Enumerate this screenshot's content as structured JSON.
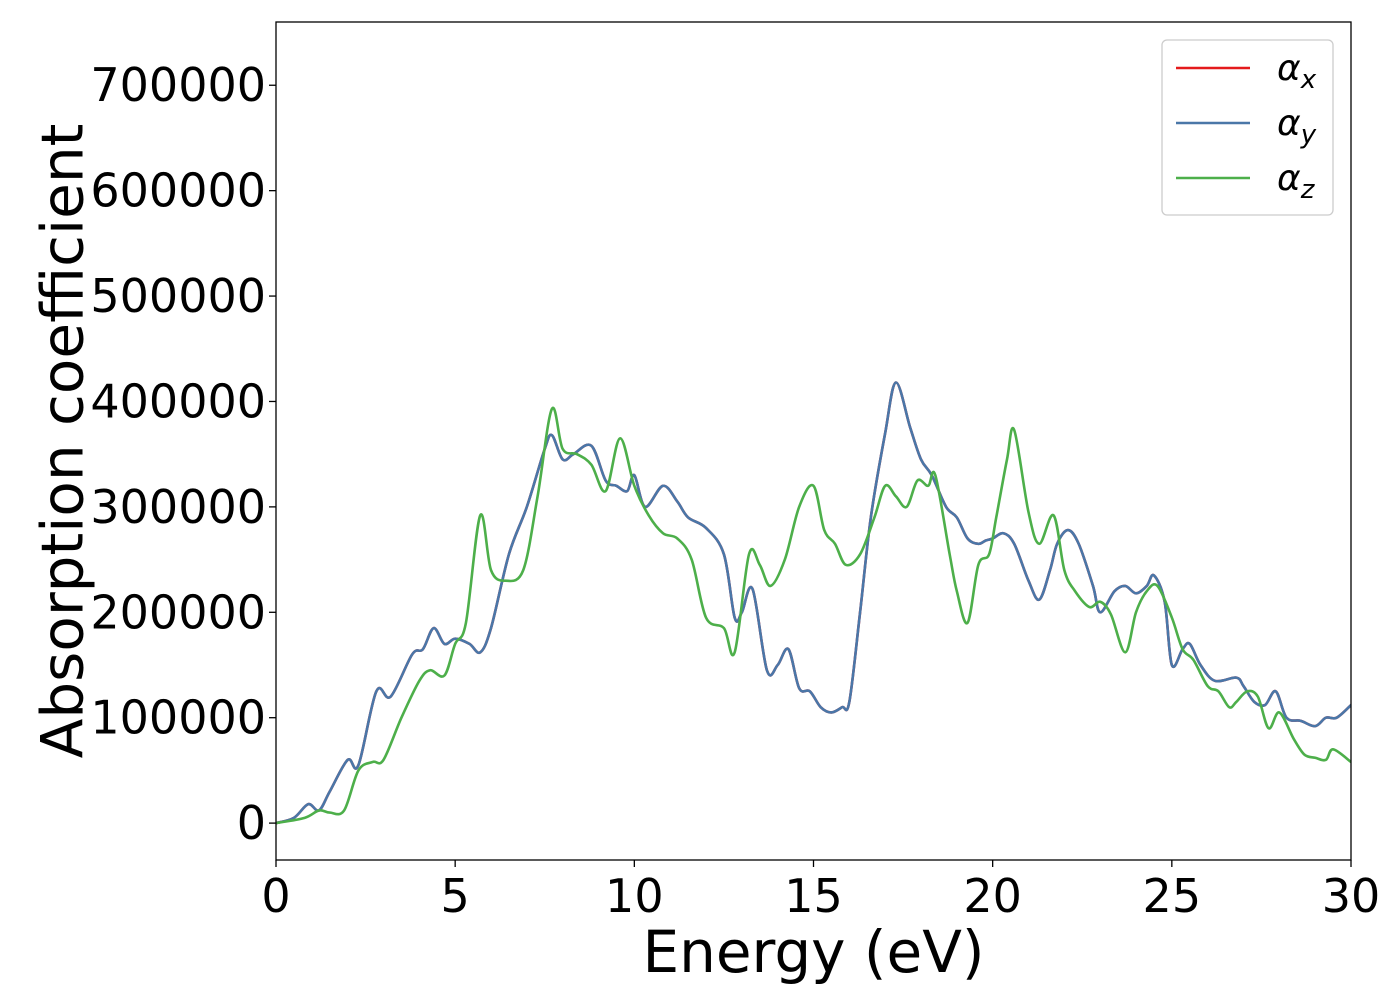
{
  "chart_data": {
    "type": "line",
    "title": "",
    "xlabel": "Energy (eV)",
    "ylabel": "Absorption coefficient",
    "xlim": [
      0,
      30
    ],
    "ylim": [
      -35000,
      760000
    ],
    "xticks": [
      0,
      5,
      10,
      15,
      20,
      25,
      30
    ],
    "yticks": [
      0,
      100000,
      200000,
      300000,
      400000,
      500000,
      600000,
      700000
    ],
    "grid": false,
    "legend_position": "top-right",
    "series": [
      {
        "name": "αx",
        "symbol": "α",
        "subscript": "x",
        "color": "#e41a1c",
        "x": [
          0,
          0.5,
          0.9,
          1.2,
          1.5,
          2.0,
          2.3,
          2.8,
          3.2,
          3.8,
          4.1,
          4.4,
          4.7,
          5.0,
          5.4,
          5.7,
          6.0,
          6.5,
          7.0,
          7.5,
          7.7,
          8.0,
          8.3,
          8.8,
          9.2,
          9.5,
          9.8,
          10.0,
          10.3,
          10.8,
          11.2,
          11.5,
          12.0,
          12.5,
          12.8,
          13.0,
          13.3,
          13.7,
          14.0,
          14.3,
          14.6,
          14.9,
          15.2,
          15.5,
          15.8,
          16.0,
          16.3,
          16.6,
          17.0,
          17.3,
          17.7,
          18.0,
          18.3,
          18.7,
          19.0,
          19.3,
          19.6,
          19.8,
          20.0,
          20.3,
          20.6,
          21.0,
          21.3,
          21.6,
          21.8,
          22.1,
          22.4,
          22.8,
          23.0,
          23.4,
          23.7,
          24.0,
          24.3,
          24.5,
          24.8,
          25.0,
          25.3,
          25.5,
          25.8,
          26.2,
          26.8,
          27.0,
          27.3,
          27.6,
          27.9,
          28.2,
          28.6,
          29.0,
          29.3,
          29.6,
          30.0
        ],
        "values": [
          0,
          5000,
          18000,
          12000,
          30000,
          60000,
          55000,
          125000,
          120000,
          160000,
          165000,
          185000,
          170000,
          175000,
          170000,
          162000,
          185000,
          255000,
          300000,
          355000,
          368000,
          345000,
          350000,
          358000,
          325000,
          320000,
          315000,
          330000,
          300000,
          320000,
          305000,
          290000,
          280000,
          255000,
          195000,
          200000,
          222000,
          145000,
          150000,
          165000,
          128000,
          125000,
          110000,
          105000,
          110000,
          115000,
          200000,
          290000,
          370000,
          418000,
          375000,
          345000,
          330000,
          300000,
          290000,
          270000,
          265000,
          268000,
          270000,
          275000,
          265000,
          230000,
          212000,
          240000,
          265000,
          278000,
          265000,
          225000,
          200000,
          220000,
          225000,
          218000,
          225000,
          235000,
          210000,
          150000,
          165000,
          170000,
          150000,
          135000,
          138000,
          130000,
          115000,
          112000,
          125000,
          100000,
          97000,
          92000,
          100000,
          100000,
          112000
        ]
      },
      {
        "name": "αy",
        "symbol": "α",
        "subscript": "y",
        "color": "#4a77a8",
        "x": [
          0,
          0.5,
          0.9,
          1.2,
          1.5,
          2.0,
          2.3,
          2.8,
          3.2,
          3.8,
          4.1,
          4.4,
          4.7,
          5.0,
          5.4,
          5.7,
          6.0,
          6.5,
          7.0,
          7.5,
          7.7,
          8.0,
          8.3,
          8.8,
          9.2,
          9.5,
          9.8,
          10.0,
          10.3,
          10.8,
          11.2,
          11.5,
          12.0,
          12.5,
          12.8,
          13.0,
          13.3,
          13.7,
          14.0,
          14.3,
          14.6,
          14.9,
          15.2,
          15.5,
          15.8,
          16.0,
          16.3,
          16.6,
          17.0,
          17.3,
          17.7,
          18.0,
          18.3,
          18.7,
          19.0,
          19.3,
          19.6,
          19.8,
          20.0,
          20.3,
          20.6,
          21.0,
          21.3,
          21.6,
          21.8,
          22.1,
          22.4,
          22.8,
          23.0,
          23.4,
          23.7,
          24.0,
          24.3,
          24.5,
          24.8,
          25.0,
          25.3,
          25.5,
          25.8,
          26.2,
          26.8,
          27.0,
          27.3,
          27.6,
          27.9,
          28.2,
          28.6,
          29.0,
          29.3,
          29.6,
          30.0
        ],
        "values": [
          0,
          5000,
          18000,
          12000,
          30000,
          60000,
          55000,
          125000,
          120000,
          160000,
          165000,
          185000,
          170000,
          175000,
          170000,
          162000,
          185000,
          255000,
          300000,
          355000,
          368000,
          345000,
          350000,
          358000,
          325000,
          320000,
          315000,
          330000,
          300000,
          320000,
          305000,
          290000,
          280000,
          255000,
          195000,
          200000,
          222000,
          145000,
          150000,
          165000,
          128000,
          125000,
          110000,
          105000,
          110000,
          115000,
          200000,
          290000,
          370000,
          418000,
          375000,
          345000,
          330000,
          300000,
          290000,
          270000,
          265000,
          268000,
          270000,
          275000,
          265000,
          230000,
          212000,
          240000,
          265000,
          278000,
          265000,
          225000,
          200000,
          220000,
          225000,
          218000,
          225000,
          235000,
          210000,
          150000,
          165000,
          170000,
          150000,
          135000,
          138000,
          130000,
          115000,
          112000,
          125000,
          100000,
          97000,
          92000,
          100000,
          100000,
          112000
        ]
      },
      {
        "name": "αz",
        "symbol": "α",
        "subscript": "z",
        "color": "#4daf4a",
        "x": [
          0,
          0.8,
          1.2,
          1.5,
          1.9,
          2.3,
          2.7,
          3.0,
          3.5,
          4.0,
          4.3,
          4.7,
          5.0,
          5.3,
          5.7,
          6.0,
          6.4,
          6.9,
          7.3,
          7.7,
          8.0,
          8.4,
          8.8,
          9.2,
          9.6,
          10.0,
          10.4,
          10.8,
          11.2,
          11.6,
          12.0,
          12.5,
          12.8,
          13.2,
          13.5,
          13.8,
          14.2,
          14.6,
          15.0,
          15.3,
          15.6,
          15.9,
          16.3,
          16.7,
          17.0,
          17.3,
          17.6,
          17.9,
          18.2,
          18.4,
          18.8,
          19.0,
          19.3,
          19.6,
          19.9,
          20.1,
          20.4,
          20.6,
          21.0,
          21.3,
          21.7,
          22.0,
          22.3,
          22.7,
          23.0,
          23.3,
          23.7,
          24.0,
          24.3,
          24.6,
          25.0,
          25.3,
          25.6,
          26.0,
          26.3,
          26.6,
          26.8,
          27.1,
          27.4,
          27.7,
          28.0,
          28.4,
          28.7,
          29.0,
          29.3,
          29.5,
          30.0
        ],
        "values": [
          0,
          5000,
          12000,
          10000,
          12000,
          50000,
          58000,
          60000,
          100000,
          135000,
          145000,
          140000,
          170000,
          190000,
          292000,
          240000,
          230000,
          240000,
          310000,
          393000,
          355000,
          350000,
          340000,
          315000,
          365000,
          320000,
          292000,
          275000,
          270000,
          250000,
          195000,
          185000,
          162000,
          255000,
          245000,
          225000,
          250000,
          300000,
          320000,
          278000,
          265000,
          245000,
          255000,
          290000,
          320000,
          310000,
          300000,
          325000,
          320000,
          330000,
          255000,
          220000,
          190000,
          245000,
          255000,
          290000,
          345000,
          373000,
          295000,
          265000,
          292000,
          240000,
          220000,
          205000,
          210000,
          198000,
          162000,
          200000,
          220000,
          225000,
          195000,
          165000,
          155000,
          130000,
          125000,
          110000,
          115000,
          125000,
          120000,
          90000,
          105000,
          80000,
          65000,
          62000,
          60000,
          70000,
          58000
        ]
      }
    ]
  }
}
